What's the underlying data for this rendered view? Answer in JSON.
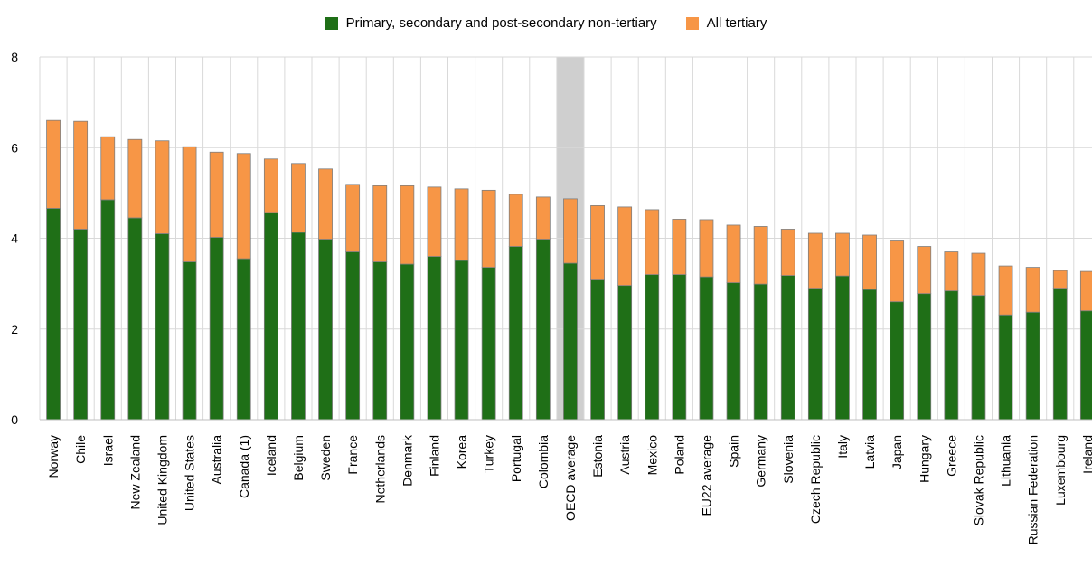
{
  "chart_data": {
    "type": "bar",
    "stacked": true,
    "categories": [
      "Norway",
      "Chile",
      "Israel",
      "New Zealand",
      "United Kingdom",
      "United States",
      "Australia",
      "Canada (1)",
      "Iceland",
      "Belgium",
      "Sweden",
      "France",
      "Netherlands",
      "Denmark",
      "Finland",
      "Korea",
      "Turkey",
      "Portugal",
      "Colombia",
      "OECD average",
      "Estonia",
      "Austria",
      "Mexico",
      "Poland",
      "EU22 average",
      "Spain",
      "Germany",
      "Slovenia",
      "Czech Republic",
      "Italy",
      "Latvia",
      "Japan",
      "Hungary",
      "Greece",
      "Slovak Republic",
      "Lithuania",
      "Russian Federation",
      "Luxembourg",
      "Ireland"
    ],
    "highlight_category": "OECD average",
    "series": [
      {
        "name": "Primary, secondary and post-secondary non-tertiary",
        "color": "#1f6f17",
        "values": [
          4.66,
          4.2,
          4.85,
          4.45,
          4.1,
          3.48,
          4.02,
          3.55,
          4.57,
          4.13,
          3.98,
          3.7,
          3.48,
          3.43,
          3.6,
          3.51,
          3.36,
          3.82,
          3.98,
          3.45,
          3.08,
          2.96,
          3.2,
          3.2,
          3.15,
          3.02,
          2.99,
          3.18,
          2.9,
          3.17,
          2.87,
          2.6,
          2.78,
          2.84,
          2.74,
          2.31,
          2.37,
          2.9,
          2.4
        ]
      },
      {
        "name": "All tertiary",
        "color": "#f79646",
        "values": [
          1.94,
          2.38,
          1.39,
          1.73,
          2.05,
          2.54,
          1.88,
          2.32,
          1.18,
          1.52,
          1.55,
          1.49,
          1.68,
          1.73,
          1.53,
          1.58,
          1.7,
          1.15,
          0.93,
          1.42,
          1.64,
          1.73,
          1.43,
          1.22,
          1.26,
          1.27,
          1.27,
          1.02,
          1.21,
          0.94,
          1.2,
          1.36,
          1.04,
          0.86,
          0.93,
          1.08,
          0.99,
          0.39,
          0.87
        ]
      }
    ],
    "xlabel": "",
    "ylabel": "",
    "ylim": [
      0,
      8
    ],
    "yticks": [
      0,
      2,
      4,
      6,
      8
    ],
    "grid": true,
    "legend_position": "top-center"
  }
}
